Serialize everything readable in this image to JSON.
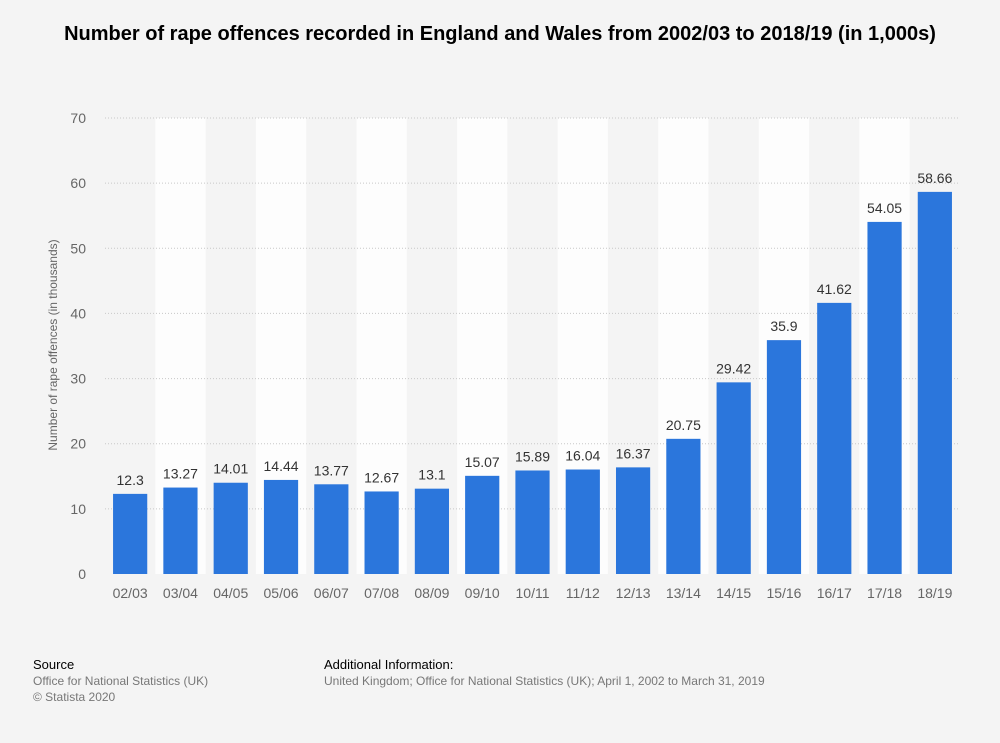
{
  "chart_data": {
    "type": "bar",
    "title": "Number of rape offences recorded in England and Wales from 2002/03 to 2018/19 (in 1,000s)",
    "ylabel": "Number of rape offences (in thousands)",
    "xlabel": "",
    "ylim": [
      0,
      70
    ],
    "yticks": [
      0,
      10,
      20,
      30,
      40,
      50,
      60,
      70
    ],
    "grid": true,
    "categories": [
      "02/03",
      "03/04",
      "04/05",
      "05/06",
      "06/07",
      "07/08",
      "08/09",
      "09/10",
      "10/11",
      "11/12",
      "12/13",
      "13/14",
      "14/15",
      "15/16",
      "16/17",
      "17/18",
      "18/19"
    ],
    "values": [
      12.3,
      13.27,
      14.01,
      14.44,
      13.77,
      12.67,
      13.1,
      15.07,
      15.89,
      16.04,
      16.37,
      20.75,
      29.42,
      35.9,
      41.62,
      54.05,
      58.66
    ],
    "value_labels": [
      "12.3",
      "13.27",
      "14.01",
      "14.44",
      "13.77",
      "12.67",
      "13.1",
      "15.07",
      "15.89",
      "16.04",
      "16.37",
      "20.75",
      "29.42",
      "35.9",
      "41.62",
      "54.05",
      "58.66"
    ],
    "bar_color": "#2b76dc"
  },
  "footer": {
    "source_heading": "Source",
    "source_lines": [
      "Office for National Statistics (UK)",
      "© Statista 2020"
    ],
    "info_heading": "Additional Information:",
    "info_lines": [
      "United Kingdom; Office for National Statistics (UK); April 1, 2002 to March 31, 2019"
    ]
  }
}
